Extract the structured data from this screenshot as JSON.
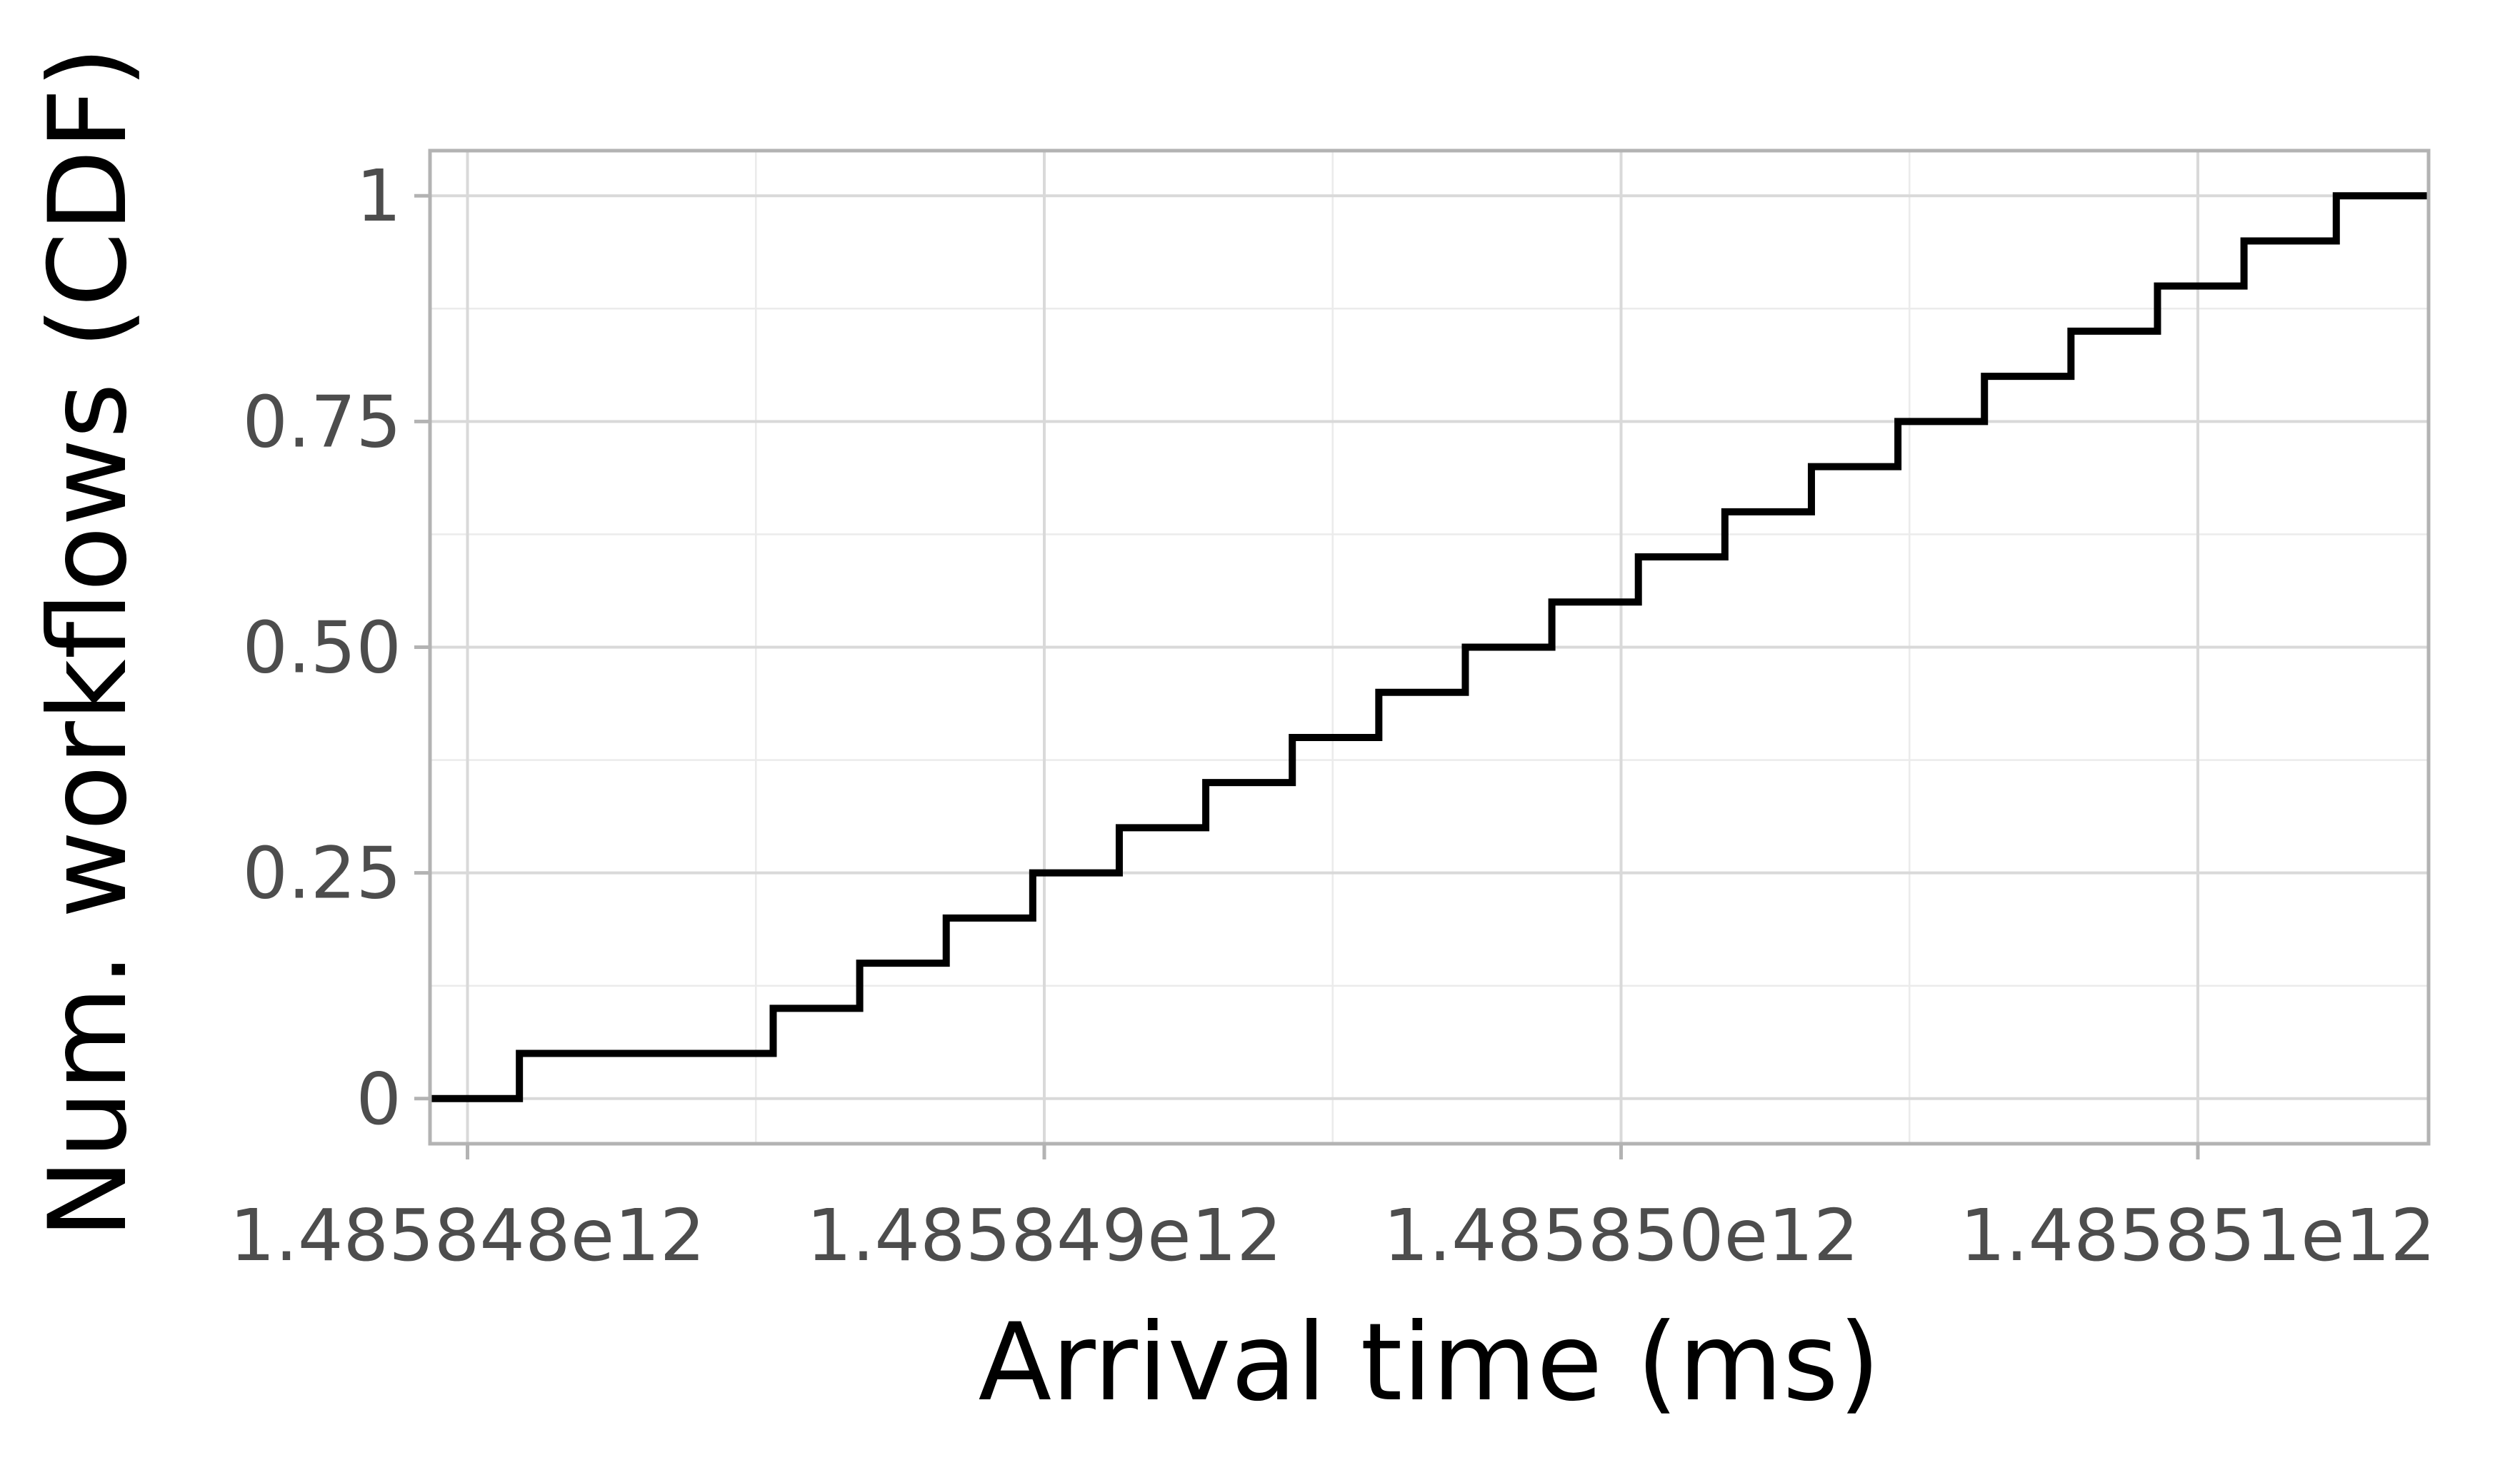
{
  "chart_data": {
    "type": "line",
    "step": true,
    "title": "",
    "xlabel": "Arrival time (ms)",
    "ylabel": "Num. workflows (CDF)",
    "x_ticks": [
      {
        "value": 1485848000000,
        "label": "1.485848e12"
      },
      {
        "value": 1485849000000,
        "label": "1.485849e12"
      },
      {
        "value": 1485850000000,
        "label": "1.485850e12"
      },
      {
        "value": 1485851000000,
        "label": "1.485851e12"
      }
    ],
    "y_ticks": [
      {
        "value": 0,
        "label": "0"
      },
      {
        "value": 0.25,
        "label": "0.25"
      },
      {
        "value": 0.5,
        "label": "0.50"
      },
      {
        "value": 0.75,
        "label": "0.75"
      },
      {
        "value": 1,
        "label": "1"
      }
    ],
    "xlim": [
      1485847935000,
      1485851400000
    ],
    "ylim": [
      -0.05,
      1.05
    ],
    "grid": true,
    "colors": {
      "line": "#000000",
      "grid_major": "#d9d9d9",
      "grid_minor": "#ebebeb",
      "panel_border": "#b3b3b3"
    },
    "series": [
      {
        "x": [
          1485847935000,
          1485848090000,
          1485848530000,
          1485848680000,
          1485848830000,
          1485848980000,
          1485849130000,
          1485849280000,
          1485849430000,
          1485849580000,
          1485849730000,
          1485849880000,
          1485850030000,
          1485850180000,
          1485850330000,
          1485850480000,
          1485850630000,
          1485850780000,
          1485850930000,
          1485851080000,
          1485851240000
        ],
        "y": [
          0,
          0.05,
          0.1,
          0.15,
          0.2,
          0.25,
          0.3,
          0.35,
          0.4,
          0.45,
          0.5,
          0.55,
          0.6,
          0.65,
          0.7,
          0.75,
          0.8,
          0.85,
          0.9,
          0.95,
          1.0
        ],
        "x_end": 1485851400000
      }
    ]
  }
}
